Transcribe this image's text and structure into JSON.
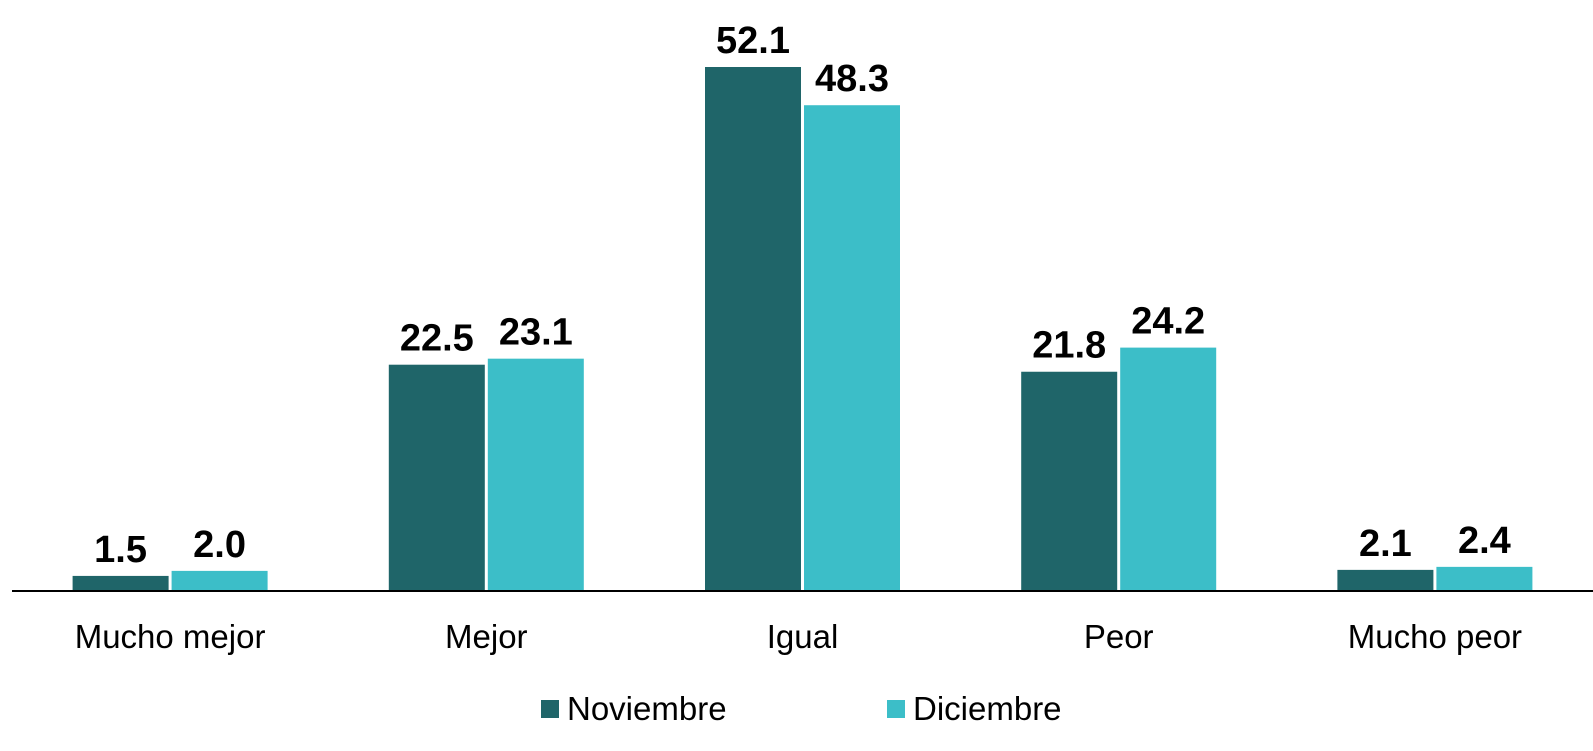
{
  "chart_data": {
    "type": "bar",
    "categories": [
      "Mucho mejor",
      "Mejor",
      "Igual",
      "Peor",
      "Mucho peor"
    ],
    "series": [
      {
        "name": "Noviembre",
        "values": [
          1.5,
          22.5,
          52.1,
          21.8,
          2.1
        ],
        "color": "#1f6569"
      },
      {
        "name": "Diciembre",
        "values": [
          2.0,
          23.1,
          48.3,
          24.2,
          2.4
        ],
        "color": "#3cbec8"
      }
    ],
    "value_labels": [
      [
        "1.5",
        "22.5",
        "52.1",
        "21.8",
        "2.1"
      ],
      [
        "2.0",
        "23.1",
        "48.3",
        "24.2",
        "2.4"
      ]
    ],
    "title": "",
    "xlabel": "",
    "ylabel": "",
    "ylim": [
      0,
      52.1
    ],
    "grid": false,
    "legend_position": "bottom-center",
    "axis_color": "#000000"
  }
}
